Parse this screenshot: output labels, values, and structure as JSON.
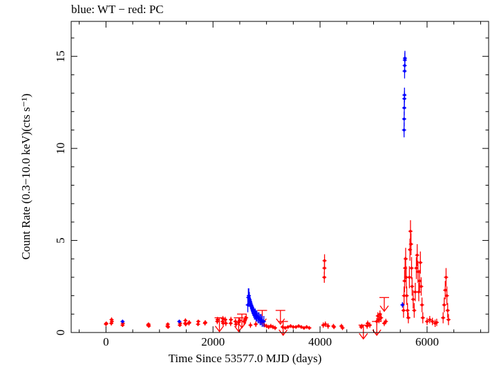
{
  "chart_data": {
    "type": "scatter",
    "title": "blue: WT − red: PC",
    "xlabel": "Time Since 53577.0 MJD (days)",
    "ylabel": "Count Rate (0.3−10.0 keV)(cts s⁻¹)",
    "xlim": [
      -650,
      7150
    ],
    "ylim": [
      0,
      16.9
    ],
    "xticks": [
      0,
      2000,
      4000,
      6000
    ],
    "yticks": [
      0,
      5,
      10,
      15
    ],
    "grid": false,
    "colors": {
      "WT": "#0000ff",
      "PC": "#ff0000",
      "axes": "#000000"
    },
    "series": [
      {
        "name": "WT",
        "color": "#0000ff",
        "points": [
          {
            "x": 310,
            "y": 0.6,
            "err": 0.1
          },
          {
            "x": 1370,
            "y": 0.6,
            "err": 0.1
          },
          {
            "x": 2650,
            "y": 1.5,
            "err": 0.4
          },
          {
            "x": 2660,
            "y": 1.9,
            "err": 0.5
          },
          {
            "x": 2670,
            "y": 2.0,
            "err": 0.4
          },
          {
            "x": 2680,
            "y": 1.8,
            "err": 0.4
          },
          {
            "x": 2690,
            "y": 1.7,
            "err": 0.3
          },
          {
            "x": 2700,
            "y": 1.6,
            "err": 0.3
          },
          {
            "x": 2710,
            "y": 1.5,
            "err": 0.3
          },
          {
            "x": 2720,
            "y": 1.4,
            "err": 0.3
          },
          {
            "x": 2730,
            "y": 1.3,
            "err": 0.3
          },
          {
            "x": 2745,
            "y": 1.2,
            "err": 0.3
          },
          {
            "x": 2760,
            "y": 1.1,
            "err": 0.3
          },
          {
            "x": 2775,
            "y": 1.0,
            "err": 0.3
          },
          {
            "x": 2790,
            "y": 1.0,
            "err": 0.3
          },
          {
            "x": 2805,
            "y": 0.9,
            "err": 0.3
          },
          {
            "x": 2820,
            "y": 0.9,
            "err": 0.3
          },
          {
            "x": 2840,
            "y": 0.8,
            "err": 0.3
          },
          {
            "x": 2860,
            "y": 0.8,
            "err": 0.3
          },
          {
            "x": 2880,
            "y": 0.7,
            "err": 0.3
          },
          {
            "x": 2900,
            "y": 0.7,
            "err": 0.3
          },
          {
            "x": 2920,
            "y": 0.6,
            "err": 0.3
          },
          {
            "x": 2950,
            "y": 0.6,
            "err": 0.3
          },
          {
            "x": 5540,
            "y": 1.5,
            "err": 0.15
          },
          {
            "x": 5570,
            "y": 11.0,
            "err": 0.4
          },
          {
            "x": 5572,
            "y": 11.6,
            "err": 0.4
          },
          {
            "x": 5574,
            "y": 12.2,
            "err": 0.4
          },
          {
            "x": 5576,
            "y": 12.7,
            "err": 0.4
          },
          {
            "x": 5578,
            "y": 12.9,
            "err": 0.4
          },
          {
            "x": 5580,
            "y": 14.2,
            "err": 0.4
          },
          {
            "x": 5582,
            "y": 14.5,
            "err": 0.4
          },
          {
            "x": 5584,
            "y": 14.8,
            "err": 0.4
          },
          {
            "x": 5586,
            "y": 14.9,
            "err": 0.4
          }
        ]
      },
      {
        "name": "PC",
        "color": "#ff0000",
        "points": [
          {
            "x": 0,
            "y": 0.45,
            "err": 0.1
          },
          {
            "x": 5,
            "y": 0.5,
            "err": 0.1
          },
          {
            "x": 100,
            "y": 0.5,
            "err": 0.12
          },
          {
            "x": 105,
            "y": 0.7,
            "err": 0.12
          },
          {
            "x": 110,
            "y": 0.6,
            "err": 0.12
          },
          {
            "x": 310,
            "y": 0.4,
            "err": 0.1
          },
          {
            "x": 315,
            "y": 0.5,
            "err": 0.1
          },
          {
            "x": 790,
            "y": 0.4,
            "err": 0.1
          },
          {
            "x": 795,
            "y": 0.45,
            "err": 0.1
          },
          {
            "x": 800,
            "y": 0.35,
            "err": 0.1
          },
          {
            "x": 1150,
            "y": 0.35,
            "err": 0.1
          },
          {
            "x": 1155,
            "y": 0.45,
            "err": 0.1
          },
          {
            "x": 1160,
            "y": 0.3,
            "err": 0.1
          },
          {
            "x": 1380,
            "y": 0.4,
            "err": 0.1
          },
          {
            "x": 1385,
            "y": 0.5,
            "err": 0.1
          },
          {
            "x": 1480,
            "y": 0.5,
            "err": 0.12
          },
          {
            "x": 1485,
            "y": 0.65,
            "err": 0.12
          },
          {
            "x": 1490,
            "y": 0.45,
            "err": 0.12
          },
          {
            "x": 1550,
            "y": 0.5,
            "err": 0.12
          },
          {
            "x": 1555,
            "y": 0.55,
            "err": 0.12
          },
          {
            "x": 1720,
            "y": 0.45,
            "err": 0.1
          },
          {
            "x": 1725,
            "y": 0.6,
            "err": 0.1
          },
          {
            "x": 1850,
            "y": 0.5,
            "err": 0.12
          },
          {
            "x": 1855,
            "y": 0.55,
            "err": 0.12
          },
          {
            "x": 2080,
            "y": 0.6,
            "err": 0.15
          },
          {
            "x": 2085,
            "y": 0.7,
            "err": 0.15
          },
          {
            "x": 2180,
            "y": 0.6,
            "err": 0.15
          },
          {
            "x": 2185,
            "y": 0.75,
            "err": 0.15
          },
          {
            "x": 2190,
            "y": 0.5,
            "err": 0.15
          },
          {
            "x": 2230,
            "y": 0.7,
            "err": 0.15
          },
          {
            "x": 2240,
            "y": 0.5,
            "err": 0.15
          },
          {
            "x": 2330,
            "y": 0.5,
            "err": 0.15
          },
          {
            "x": 2335,
            "y": 0.7,
            "err": 0.15
          },
          {
            "x": 2420,
            "y": 0.6,
            "err": 0.15
          },
          {
            "x": 2430,
            "y": 0.45,
            "err": 0.15
          },
          {
            "x": 2480,
            "y": 0.55,
            "err": 0.15
          },
          {
            "x": 2500,
            "y": 0.65,
            "err": 0.15
          },
          {
            "x": 2580,
            "y": 0.6,
            "err": 0.2
          },
          {
            "x": 2600,
            "y": 0.7,
            "err": 0.2
          },
          {
            "x": 2620,
            "y": 0.8,
            "err": 0.2
          },
          {
            "x": 2700,
            "y": 0.4,
            "err": 0.15
          },
          {
            "x": 2800,
            "y": 0.45,
            "err": 0.15
          },
          {
            "x": 2960,
            "y": 0.4,
            "err": 0.12
          },
          {
            "x": 3000,
            "y": 0.35,
            "err": 0.12
          },
          {
            "x": 3040,
            "y": 0.3,
            "err": 0.12
          },
          {
            "x": 3080,
            "y": 0.35,
            "err": 0.12
          },
          {
            "x": 3120,
            "y": 0.3,
            "err": 0.12
          },
          {
            "x": 3160,
            "y": 0.25,
            "err": 0.12
          },
          {
            "x": 3300,
            "y": 0.3,
            "err": 0.1
          },
          {
            "x": 3350,
            "y": 0.25,
            "err": 0.1
          },
          {
            "x": 3400,
            "y": 0.3,
            "err": 0.1
          },
          {
            "x": 3450,
            "y": 0.35,
            "err": 0.1
          },
          {
            "x": 3500,
            "y": 0.3,
            "err": 0.1
          },
          {
            "x": 3550,
            "y": 0.3,
            "err": 0.1
          },
          {
            "x": 3600,
            "y": 0.35,
            "err": 0.1
          },
          {
            "x": 3650,
            "y": 0.3,
            "err": 0.1
          },
          {
            "x": 3700,
            "y": 0.25,
            "err": 0.1
          },
          {
            "x": 3750,
            "y": 0.3,
            "err": 0.1
          },
          {
            "x": 3800,
            "y": 0.25,
            "err": 0.1
          },
          {
            "x": 4060,
            "y": 0.4,
            "err": 0.15
          },
          {
            "x": 4080,
            "y": 3.0,
            "err": 0.3
          },
          {
            "x": 4082,
            "y": 3.5,
            "err": 0.35
          },
          {
            "x": 4084,
            "y": 3.9,
            "err": 0.35
          },
          {
            "x": 4100,
            "y": 0.45,
            "err": 0.15
          },
          {
            "x": 4150,
            "y": 0.35,
            "err": 0.15
          },
          {
            "x": 4250,
            "y": 0.35,
            "err": 0.12
          },
          {
            "x": 4260,
            "y": 0.3,
            "err": 0.12
          },
          {
            "x": 4400,
            "y": 0.35,
            "err": 0.12
          },
          {
            "x": 4420,
            "y": 0.25,
            "err": 0.12
          },
          {
            "x": 4770,
            "y": 0.3,
            "err": 0.12
          },
          {
            "x": 4780,
            "y": 0.35,
            "err": 0.12
          },
          {
            "x": 4880,
            "y": 0.35,
            "err": 0.15
          },
          {
            "x": 4890,
            "y": 0.5,
            "err": 0.15
          },
          {
            "x": 4930,
            "y": 0.4,
            "err": 0.15
          },
          {
            "x": 5060,
            "y": 0.6,
            "err": 0.2
          },
          {
            "x": 5080,
            "y": 0.9,
            "err": 0.2
          },
          {
            "x": 5100,
            "y": 0.7,
            "err": 0.2
          },
          {
            "x": 5120,
            "y": 1.0,
            "err": 0.2
          },
          {
            "x": 5140,
            "y": 0.8,
            "err": 0.2
          },
          {
            "x": 5200,
            "y": 0.5,
            "err": 0.15
          },
          {
            "x": 5230,
            "y": 0.6,
            "err": 0.15
          },
          {
            "x": 5560,
            "y": 1.2,
            "err": 0.4
          },
          {
            "x": 5570,
            "y": 2.0,
            "err": 0.5
          },
          {
            "x": 5580,
            "y": 2.8,
            "err": 0.6
          },
          {
            "x": 5590,
            "y": 3.5,
            "err": 0.6
          },
          {
            "x": 5600,
            "y": 4.0,
            "err": 0.6
          },
          {
            "x": 5610,
            "y": 3.0,
            "err": 0.6
          },
          {
            "x": 5620,
            "y": 2.0,
            "err": 0.5
          },
          {
            "x": 5635,
            "y": 1.2,
            "err": 0.4
          },
          {
            "x": 5650,
            "y": 0.8,
            "err": 0.3
          },
          {
            "x": 5670,
            "y": 3.0,
            "err": 0.6
          },
          {
            "x": 5680,
            "y": 4.5,
            "err": 0.6
          },
          {
            "x": 5690,
            "y": 5.5,
            "err": 0.6
          },
          {
            "x": 5700,
            "y": 4.8,
            "err": 0.6
          },
          {
            "x": 5710,
            "y": 3.5,
            "err": 0.6
          },
          {
            "x": 5720,
            "y": 2.5,
            "err": 0.5
          },
          {
            "x": 5740,
            "y": 1.8,
            "err": 0.5
          },
          {
            "x": 5760,
            "y": 1.2,
            "err": 0.4
          },
          {
            "x": 5780,
            "y": 2.2,
            "err": 0.5
          },
          {
            "x": 5800,
            "y": 3.5,
            "err": 0.6
          },
          {
            "x": 5815,
            "y": 4.2,
            "err": 0.6
          },
          {
            "x": 5830,
            "y": 3.3,
            "err": 0.6
          },
          {
            "x": 5845,
            "y": 2.2,
            "err": 0.5
          },
          {
            "x": 5860,
            "y": 2.8,
            "err": 0.6
          },
          {
            "x": 5875,
            "y": 3.8,
            "err": 0.6
          },
          {
            "x": 5890,
            "y": 2.5,
            "err": 0.5
          },
          {
            "x": 5905,
            "y": 1.5,
            "err": 0.4
          },
          {
            "x": 5920,
            "y": 0.8,
            "err": 0.3
          },
          {
            "x": 6000,
            "y": 0.6,
            "err": 0.2
          },
          {
            "x": 6050,
            "y": 0.7,
            "err": 0.2
          },
          {
            "x": 6100,
            "y": 0.6,
            "err": 0.2
          },
          {
            "x": 6150,
            "y": 0.5,
            "err": 0.2
          },
          {
            "x": 6180,
            "y": 0.55,
            "err": 0.2
          },
          {
            "x": 6300,
            "y": 0.8,
            "err": 0.3
          },
          {
            "x": 6320,
            "y": 1.5,
            "err": 0.4
          },
          {
            "x": 6340,
            "y": 2.3,
            "err": 0.5
          },
          {
            "x": 6355,
            "y": 3.0,
            "err": 0.5
          },
          {
            "x": 6370,
            "y": 2.0,
            "err": 0.5
          },
          {
            "x": 6385,
            "y": 1.2,
            "err": 0.4
          },
          {
            "x": 6400,
            "y": 0.7,
            "err": 0.3
          }
        ],
        "upper_limits": [
          {
            "x": 2120,
            "y": 0.8
          },
          {
            "x": 2480,
            "y": 0.8
          },
          {
            "x": 2540,
            "y": 1.0
          },
          {
            "x": 2920,
            "y": 1.2
          },
          {
            "x": 3260,
            "y": 1.2
          },
          {
            "x": 3310,
            "y": 0.6
          },
          {
            "x": 4810,
            "y": 0.4
          },
          {
            "x": 5060,
            "y": 0.6
          },
          {
            "x": 5200,
            "y": 1.9
          }
        ]
      }
    ]
  }
}
